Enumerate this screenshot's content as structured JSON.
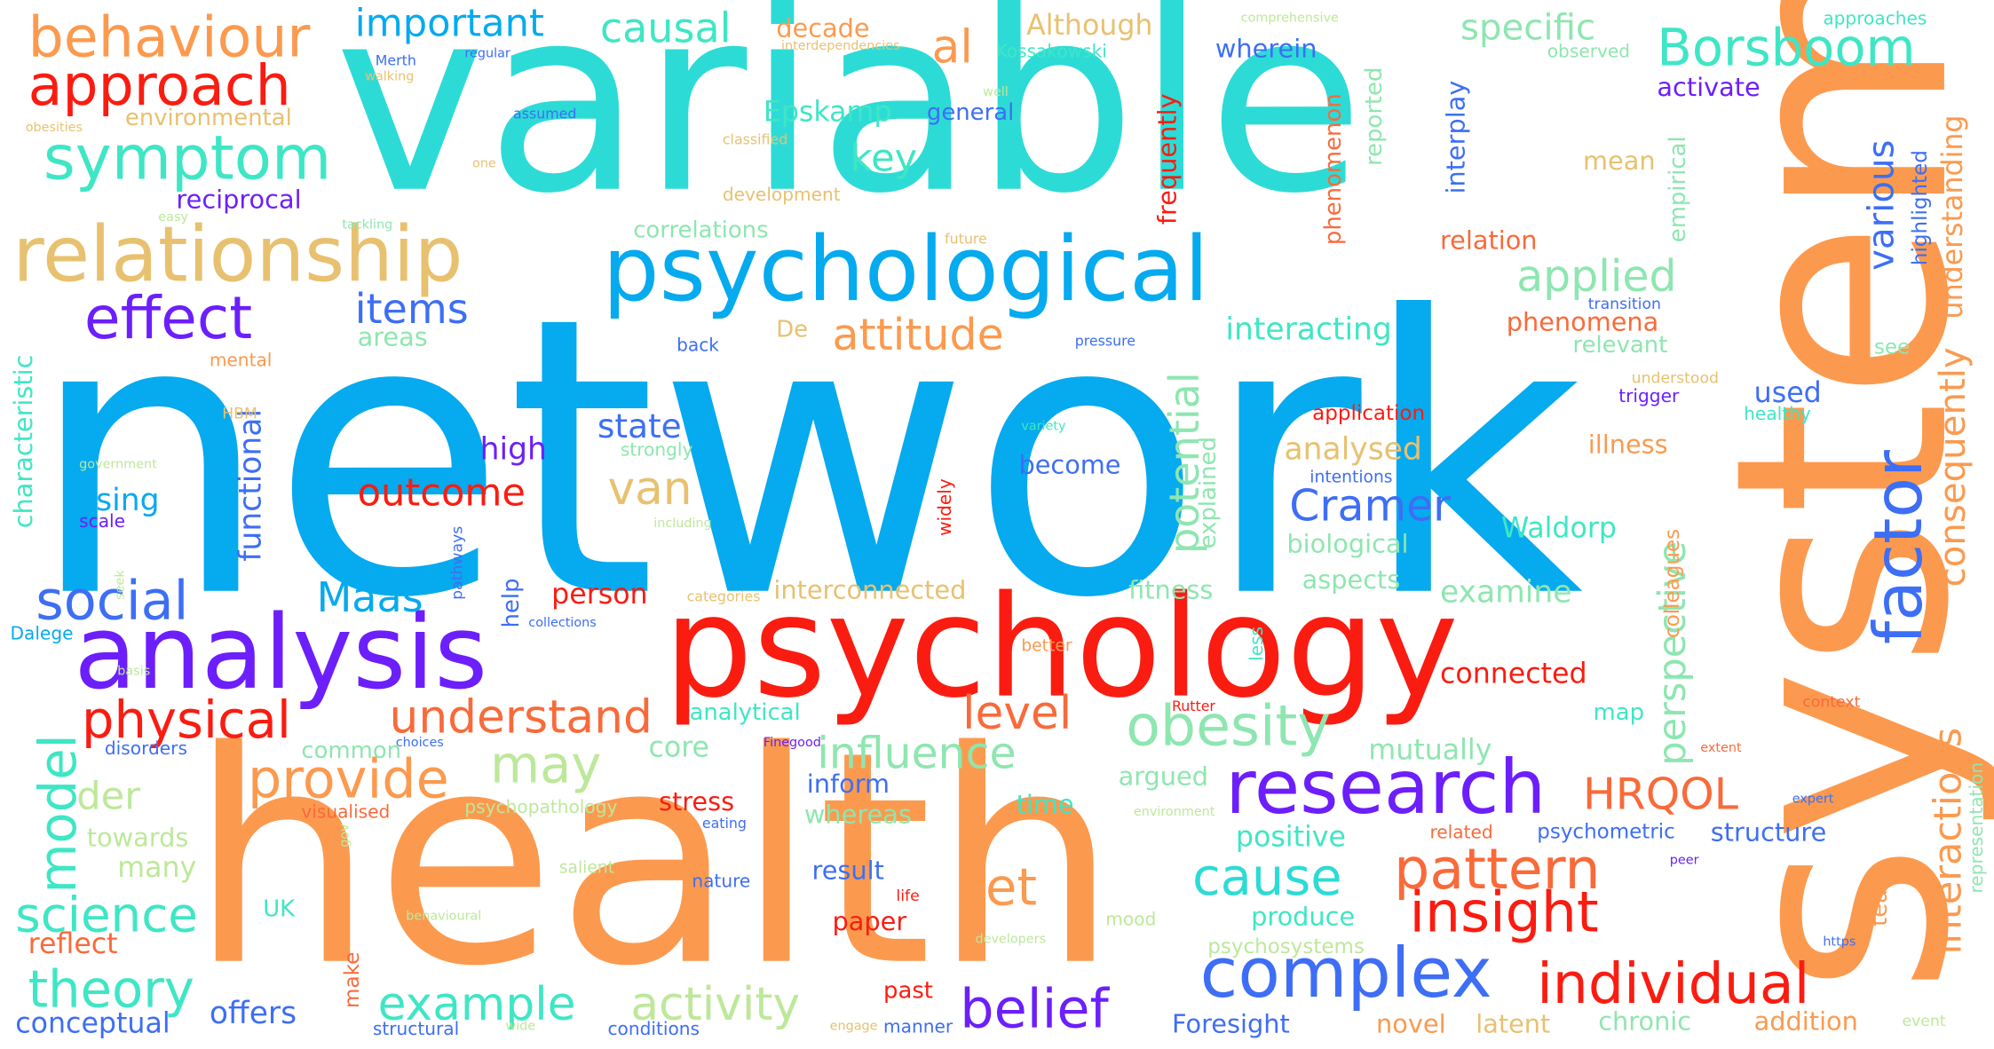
{
  "palette": {
    "cyan": "#2ddbd6",
    "sky": "#06aaee",
    "orange": "#fb9a4f",
    "red": "#fa1c11",
    "coral": "#f96a3a",
    "purple": "#6c1ffb",
    "blue": "#3d6ef5",
    "gold": "#e8c170",
    "mint": "#8ee6b0",
    "lime": "#bde89a",
    "teal": "#3fe6c5"
  },
  "words": [
    "network",
    "variable",
    "health",
    "system",
    "psychology",
    "analysis",
    "psychological",
    "relationship",
    "research",
    "complex",
    "factor",
    "obesity",
    "behaviour",
    "approach",
    "symptom",
    "effect",
    "social",
    "science",
    "theory",
    "physical",
    "model",
    "understand",
    "provide",
    "individual",
    "insight",
    "pattern",
    "cause",
    "belief",
    "example",
    "activity",
    "influence",
    "HRQOL",
    "et",
    "may",
    "level",
    "attitude",
    "applied",
    "items",
    "outcome",
    "Cramer",
    "Maas",
    "van",
    "important",
    "causal",
    "al",
    "Borsboom",
    "key",
    "specific",
    "interactions",
    "consequently",
    "various",
    "understanding",
    "perspective",
    "potential",
    "der",
    "offers",
    "conceptual",
    "reflect",
    "many",
    "towards",
    "common",
    "functional",
    "using",
    "scale",
    "characteristic",
    "mental",
    "areas",
    "state",
    "high",
    "analysed",
    "interacting",
    "interconnected",
    "examine",
    "aspects",
    "biological",
    "Waldorp",
    "connected",
    "illness",
    "used",
    "trigger",
    "healthy",
    "relevant",
    "phenomena",
    "relation",
    "activate",
    "general",
    "interplay",
    "wherein",
    "decade",
    "Although",
    "Kossakowski",
    "Epskamp",
    "environmental",
    "reciprocal",
    "correlations",
    "development",
    "mean",
    "reported",
    "phenomenon",
    "frequently",
    "empirical",
    "highlighted",
    "see",
    "transition",
    "approaches",
    "observed",
    "comprehensive",
    "interdependencies",
    "regular",
    "walking",
    "obesities",
    "assumed",
    "classified",
    "one",
    "easy",
    "tackling",
    "well",
    "future",
    "pressure",
    "back",
    "De",
    "HBM",
    "government",
    "variety",
    "become",
    "application",
    "understood",
    "intentions",
    "explained",
    "strongly",
    "including",
    "seek",
    "pathways",
    "help",
    "person",
    "stress",
    "inform",
    "whereas",
    "time",
    "argued",
    "positive",
    "psychometric",
    "structure",
    "mutually",
    "map",
    "core",
    "analytical",
    "psychopathology",
    "visualised",
    "eating",
    "choices",
    "disorders",
    "Finegood",
    "context",
    "extent",
    "expert",
    "environment",
    "UK",
    "result",
    "paper",
    "nature",
    "salient",
    "life",
    "mood",
    "peer",
    "related",
    "produce",
    "psychosystems",
    "developers",
    "https",
    "chronic",
    "addition",
    "latent",
    "Foresight",
    "novel",
    "past",
    "manner",
    "engage",
    "structural",
    "conditions",
    "wide",
    "behavioural",
    "make",
    "gov",
    "representation",
    "team",
    "colleagues",
    "less",
    "better",
    "Rutter",
    "fitness",
    "widely",
    "categories",
    "basis",
    "collections",
    "Dalege",
    "Merth",
    "event"
  ]
}
